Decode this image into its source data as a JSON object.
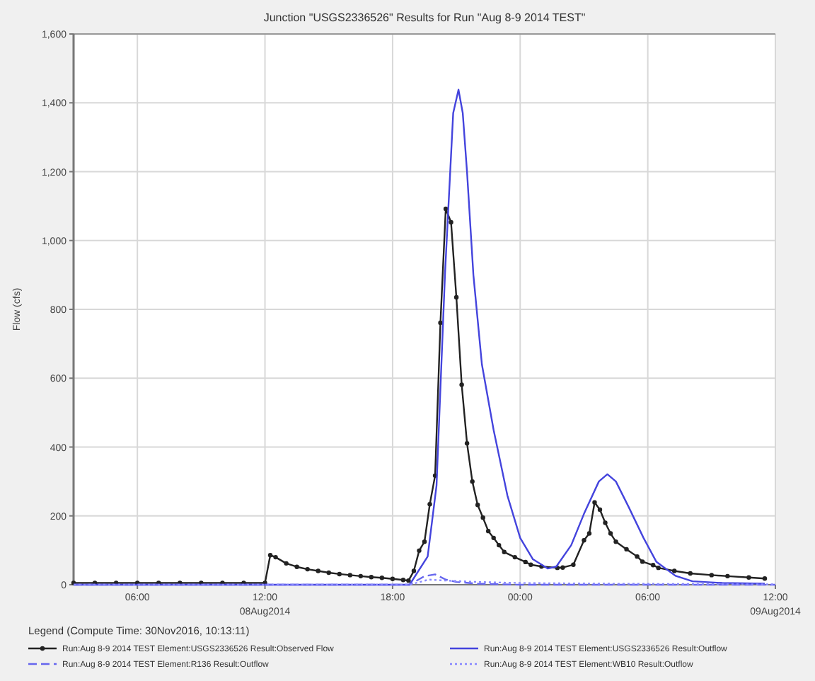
{
  "chart_data": {
    "type": "line",
    "title": "Junction \"USGS2336526\" Results for Run \"Aug 8-9 2014 TEST\"",
    "ylabel": "Flow (cfs)",
    "legend_title": "Legend (Compute Time: 30Nov2016, 10:13:11)",
    "legend": "bottom",
    "grid": true,
    "xlim": [
      "2014-08-08T03:00",
      "2014-08-09T12:00"
    ],
    "xticks": [
      {
        "value": "2014-08-08T06:00",
        "label": "06:00"
      },
      {
        "value": "2014-08-08T12:00",
        "label": "12:00\n08Aug2014"
      },
      {
        "value": "2014-08-08T18:00",
        "label": "18:00"
      },
      {
        "value": "2014-08-09T00:00",
        "label": "00:00"
      },
      {
        "value": "2014-08-09T06:00",
        "label": "06:00"
      },
      {
        "value": "2014-08-09T12:00",
        "label": "12:00\n09Aug2014"
      }
    ],
    "ylim": [
      0,
      1600
    ],
    "yticks": [
      0,
      200,
      400,
      600,
      800,
      {
        "value": 1000,
        "label": "1,000"
      },
      {
        "value": 1200,
        "label": "1,200"
      },
      {
        "value": 1400,
        "label": "1,400"
      },
      {
        "value": 1600,
        "label": "1,600"
      }
    ],
    "series": [
      {
        "name": "Run:Aug 8-9 2014 TEST Element:USGS2336526 Result:Observed Flow",
        "color": "#222222",
        "marker": "circle",
        "line_style": "solid",
        "x": [
          "2014-08-08T03:00",
          "2014-08-08T04:00",
          "2014-08-08T05:00",
          "2014-08-08T06:00",
          "2014-08-08T07:00",
          "2014-08-08T08:00",
          "2014-08-08T09:00",
          "2014-08-08T10:00",
          "2014-08-08T11:00",
          "2014-08-08T12:00",
          "2014-08-08T12:15",
          "2014-08-08T12:30",
          "2014-08-08T13:00",
          "2014-08-08T13:30",
          "2014-08-08T14:00",
          "2014-08-08T14:30",
          "2014-08-08T15:00",
          "2014-08-08T15:30",
          "2014-08-08T16:00",
          "2014-08-08T16:30",
          "2014-08-08T17:00",
          "2014-08-08T17:30",
          "2014-08-08T18:00",
          "2014-08-08T18:30",
          "2014-08-08T18:45",
          "2014-08-08T19:00",
          "2014-08-08T19:15",
          "2014-08-08T19:30",
          "2014-08-08T19:45",
          "2014-08-08T20:00",
          "2014-08-08T20:15",
          "2014-08-08T20:30",
          "2014-08-08T20:45",
          "2014-08-08T21:00",
          "2014-08-08T21:15",
          "2014-08-08T21:30",
          "2014-08-08T21:45",
          "2014-08-08T22:00",
          "2014-08-08T22:15",
          "2014-08-08T22:30",
          "2014-08-08T22:45",
          "2014-08-08T23:00",
          "2014-08-08T23:15",
          "2014-08-08T23:45",
          "2014-08-09T00:15",
          "2014-08-09T00:30",
          "2014-08-09T01:00",
          "2014-08-09T01:45",
          "2014-08-09T02:00",
          "2014-08-09T02:30",
          "2014-08-09T03:00",
          "2014-08-09T03:15",
          "2014-08-09T03:30",
          "2014-08-09T03:45",
          "2014-08-09T04:00",
          "2014-08-09T04:15",
          "2014-08-09T04:30",
          "2014-08-09T05:00",
          "2014-08-09T05:30",
          "2014-08-09T05:45",
          "2014-08-09T06:15",
          "2014-08-09T06:30",
          "2014-08-09T07:15",
          "2014-08-09T08:00",
          "2014-08-09T09:00",
          "2014-08-09T09:45",
          "2014-08-09T10:45",
          "2014-08-09T11:30"
        ],
        "values": [
          5,
          5,
          5,
          5,
          5,
          5,
          5,
          5,
          5,
          5,
          86,
          80,
          62,
          52,
          45,
          40,
          35,
          31,
          28,
          25,
          22,
          20,
          17,
          14,
          12,
          40,
          99,
          125,
          234,
          317,
          761,
          1092,
          1053,
          835,
          581,
          411,
          300,
          232,
          195,
          156,
          136,
          115,
          95,
          80,
          66,
          58,
          53,
          49,
          50,
          58,
          129,
          149,
          239,
          218,
          180,
          149,
          125,
          103,
          82,
          67,
          57,
          49,
          40,
          33,
          28,
          25,
          21,
          18
        ]
      },
      {
        "name": "Run:Aug 8-9 2014 TEST Element:USGS2336526 Result:Outflow",
        "color": "#4444dd",
        "marker": "none",
        "line_style": "solid",
        "x": [
          "2014-08-08T03:00",
          "2014-08-08T18:48",
          "2014-08-08T19:39",
          "2014-08-08T20:04",
          "2014-08-08T20:28",
          "2014-08-08T20:51",
          "2014-08-08T21:06",
          "2014-08-08T21:18",
          "2014-08-08T21:30",
          "2014-08-08T21:48",
          "2014-08-08T22:12",
          "2014-08-08T22:45",
          "2014-08-08T23:24",
          "2014-08-09T00:00",
          "2014-08-09T00:36",
          "2014-08-09T01:18",
          "2014-08-09T01:42",
          "2014-08-09T02:24",
          "2014-08-09T03:00",
          "2014-08-09T03:42",
          "2014-08-09T04:06",
          "2014-08-09T04:30",
          "2014-08-09T05:06",
          "2014-08-09T05:48",
          "2014-08-09T06:24",
          "2014-08-09T07:18",
          "2014-08-09T08:06",
          "2014-08-09T09:30",
          "2014-08-09T11:30"
        ],
        "values": [
          0,
          0,
          82,
          288,
          905,
          1370,
          1438,
          1370,
          1200,
          900,
          640,
          450,
          259,
          136,
          74,
          47,
          53,
          115,
          206,
          300,
          321,
          300,
          226,
          136,
          67,
          26,
          10,
          5,
          3
        ]
      },
      {
        "name": "Run:Aug 8-9 2014 TEST Element:R136 Result:Outflow",
        "color": "#6666ee",
        "marker": "none",
        "line_style": "dashed",
        "x": [
          "2014-08-08T03:00",
          "2014-08-08T18:48",
          "2014-08-08T19:30",
          "2014-08-08T20:00",
          "2014-08-08T20:30",
          "2014-08-08T21:00",
          "2014-08-08T22:00",
          "2014-08-09T00:00",
          "2014-08-09T12:00"
        ],
        "values": [
          0,
          0,
          25,
          30,
          15,
          8,
          3,
          0,
          0
        ]
      },
      {
        "name": "Run:Aug 8-9 2014 TEST Element:WB10 Result:Outflow",
        "color": "#8888ff",
        "marker": "none",
        "line_style": "dotted",
        "x": [
          "2014-08-08T03:00",
          "2014-08-08T18:48",
          "2014-08-08T19:42",
          "2014-08-08T20:30",
          "2014-08-08T22:00",
          "2014-08-09T00:00",
          "2014-08-09T04:00",
          "2014-08-09T08:00",
          "2014-08-09T12:00"
        ],
        "values": [
          0,
          0,
          15,
          12,
          8,
          5,
          3,
          2,
          1
        ]
      }
    ]
  }
}
